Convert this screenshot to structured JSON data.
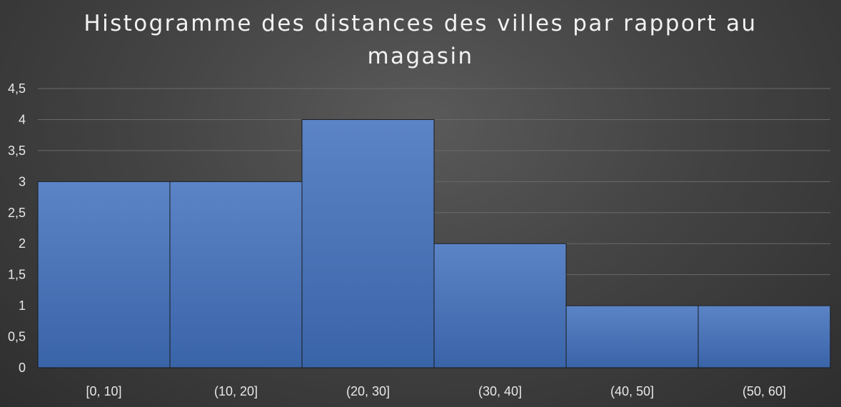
{
  "chart_data": {
    "type": "bar",
    "title_lines": [
      "Histogramme des distances des villes par rapport au",
      "magasin"
    ],
    "categories": [
      "[0, 10]",
      "(10, 20]",
      "(20, 30]",
      "(30, 40]",
      "(40, 50]",
      "(50, 60]"
    ],
    "values": [
      3,
      3,
      4,
      2,
      1,
      1
    ],
    "ylim": [
      0,
      4.5
    ],
    "yticks": [
      "0",
      "0,5",
      "1",
      "1,5",
      "2",
      "2,5",
      "3",
      "3,5",
      "4",
      "4,5"
    ],
    "grid": true,
    "bar_color": "#4472c4",
    "background_color": "#404040"
  }
}
